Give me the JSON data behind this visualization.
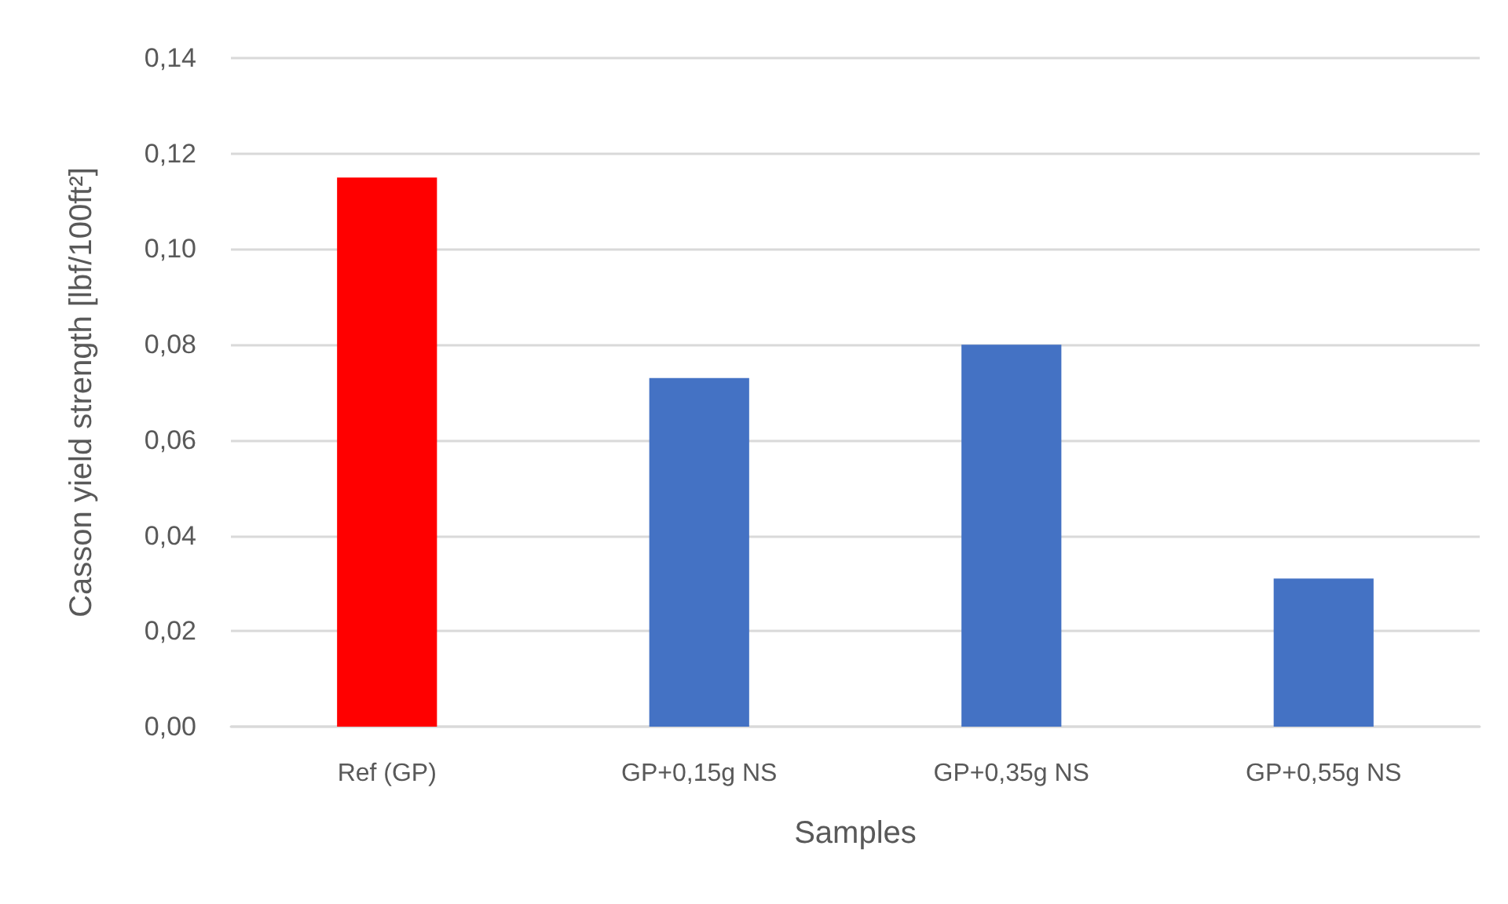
{
  "chart_data": {
    "type": "bar",
    "xlabel": "Samples",
    "ylabel": "Casson yield strength [lbf/100ft²]",
    "categories": [
      "Ref (GP)",
      "GP+0,15g NS",
      "GP+0,35g NS",
      "GP+0,55g NS"
    ],
    "values": [
      0.115,
      0.073,
      0.08,
      0.031
    ],
    "colors": [
      "#ff0000",
      "#4472c4",
      "#4472c4",
      "#4472c4"
    ],
    "ylim": [
      0,
      0.14
    ],
    "yticks": [
      {
        "value": 0,
        "label": "0,00"
      },
      {
        "value": 0.02,
        "label": "0,02"
      },
      {
        "value": 0.04,
        "label": "0,04"
      },
      {
        "value": 0.06,
        "label": "0,06"
      },
      {
        "value": 0.08,
        "label": "0,08"
      },
      {
        "value": 0.1,
        "label": "0,10"
      },
      {
        "value": 0.12,
        "label": "0,12"
      },
      {
        "value": 0.14,
        "label": "0,14"
      }
    ],
    "grid": "y"
  }
}
